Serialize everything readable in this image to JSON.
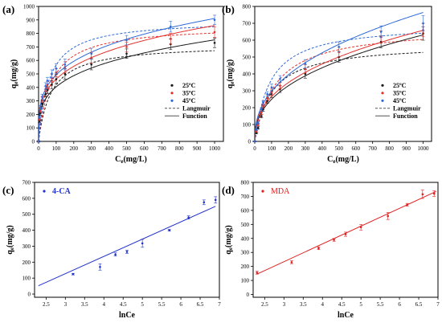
{
  "chart_data": [
    {
      "panel_label": "(a)",
      "type": "scatter",
      "xlabel": "Ce(mg/L)",
      "ylabel": "qe(mg/g)",
      "xlim": [
        0,
        1050
      ],
      "ylim": [
        0,
        1000
      ],
      "xticks": [
        0,
        100,
        200,
        300,
        400,
        500,
        600,
        700,
        800,
        900,
        1000
      ],
      "yticks": [
        0,
        100,
        200,
        300,
        400,
        500,
        600,
        700,
        800,
        900,
        1000
      ],
      "x": [
        0,
        5,
        10,
        20,
        40,
        50,
        75,
        100,
        150,
        300,
        500,
        750,
        1000
      ],
      "series": [
        {
          "name": "25ºC",
          "color": "#1a1a1a",
          "values": [
            0,
            150,
            210,
            280,
            350,
            380,
            420,
            460,
            500,
            570,
            650,
            720,
            730
          ],
          "errors": [
            5,
            10,
            15,
            20,
            20,
            25,
            30,
            35,
            40,
            40,
            35,
            40,
            35
          ]
        },
        {
          "name": "35ºC",
          "color": "#e5312d",
          "values": [
            0,
            165,
            230,
            310,
            390,
            420,
            470,
            510,
            550,
            620,
            700,
            760,
            810
          ],
          "errors": [
            5,
            10,
            15,
            20,
            20,
            25,
            30,
            30,
            40,
            40,
            35,
            40,
            40
          ]
        },
        {
          "name": "45ºC",
          "color": "#2d6ad6",
          "values": [
            0,
            180,
            250,
            330,
            410,
            450,
            500,
            540,
            570,
            650,
            750,
            850,
            900
          ],
          "errors": [
            5,
            10,
            15,
            20,
            25,
            25,
            30,
            35,
            40,
            40,
            35,
            40,
            35
          ]
        }
      ],
      "fits": [
        {
          "kind": "langmuir",
          "color": "#1a1a1a",
          "qmax": 720,
          "K": 0.014
        },
        {
          "kind": "langmuir",
          "color": "#e5312d",
          "qmax": 860,
          "K": 0.014
        },
        {
          "kind": "langmuir",
          "color": "#2d6ad6",
          "qmax": 900,
          "K": 0.017
        },
        {
          "kind": "function",
          "color": "#1a1a1a",
          "a": 116.5,
          "b": 0.27
        },
        {
          "kind": "function",
          "color": "#e5312d",
          "a": 133,
          "b": 0.27
        },
        {
          "kind": "function",
          "color": "#2d6ad6",
          "a": 145,
          "b": 0.266
        }
      ],
      "legend": {
        "position": "right",
        "entries": [
          {
            "label": "25ºC",
            "kind": "point",
            "color": "#1a1a1a"
          },
          {
            "label": "35ºC",
            "kind": "point",
            "color": "#e5312d"
          },
          {
            "label": "45ºC",
            "kind": "point",
            "color": "#2d6ad6"
          },
          {
            "label": "Langmuir",
            "kind": "dashed",
            "color": "#555555"
          },
          {
            "label": "Function",
            "kind": "solid",
            "color": "#555555"
          }
        ]
      }
    },
    {
      "panel_label": "(b)",
      "type": "scatter",
      "xlabel": "Ce(mg/L)",
      "ylabel": "qe(mg/g)",
      "xlim": [
        0,
        1050
      ],
      "ylim": [
        0,
        800
      ],
      "xticks": [
        0,
        100,
        200,
        300,
        400,
        500,
        600,
        700,
        800,
        900,
        1000
      ],
      "yticks": [
        0,
        100,
        200,
        300,
        400,
        500,
        600,
        700,
        800
      ],
      "x": [
        0,
        10,
        20,
        40,
        50,
        75,
        100,
        150,
        300,
        500,
        750,
        1000
      ],
      "series": [
        {
          "name": "25ºC",
          "color": "#1a1a1a",
          "values": [
            0,
            50,
            80,
            150,
            190,
            240,
            280,
            310,
            400,
            500,
            590,
            640
          ],
          "errors": [
            3,
            5,
            8,
            10,
            12,
            15,
            20,
            20,
            25,
            30,
            35,
            40
          ]
        },
        {
          "name": "35ºC",
          "color": "#e5312d",
          "values": [
            0,
            60,
            100,
            170,
            210,
            260,
            290,
            330,
            430,
            530,
            620,
            660
          ],
          "errors": [
            3,
            5,
            8,
            10,
            12,
            15,
            20,
            20,
            25,
            30,
            35,
            40
          ]
        },
        {
          "name": "45ºC",
          "color": "#2d6ad6",
          "values": [
            0,
            70,
            110,
            190,
            230,
            280,
            320,
            370,
            460,
            560,
            650,
            700
          ],
          "errors": [
            3,
            5,
            8,
            10,
            12,
            15,
            20,
            20,
            25,
            30,
            35,
            45
          ]
        }
      ],
      "fits": [
        {
          "kind": "langmuir",
          "color": "#1a1a1a",
          "qmax": 580,
          "K": 0.01
        },
        {
          "kind": "langmuir",
          "color": "#e5312d",
          "qmax": 680,
          "K": 0.008
        },
        {
          "kind": "langmuir",
          "color": "#2d6ad6",
          "qmax": 700,
          "K": 0.011
        },
        {
          "kind": "function",
          "color": "#1a1a1a",
          "a": 39,
          "b": 0.403
        },
        {
          "kind": "function",
          "color": "#e5312d",
          "a": 43,
          "b": 0.395
        },
        {
          "kind": "function",
          "color": "#2d6ad6",
          "a": 45,
          "b": 0.41
        }
      ],
      "legend": {
        "position": "right",
        "entries": [
          {
            "label": "25ºC",
            "kind": "point",
            "color": "#1a1a1a"
          },
          {
            "label": "35ºC",
            "kind": "point",
            "color": "#e5312d"
          },
          {
            "label": "45ºC",
            "kind": "point",
            "color": "#2d6ad6"
          },
          {
            "label": "Langmuir",
            "kind": "dashed",
            "color": "#555555"
          },
          {
            "label": "Function",
            "kind": "solid",
            "color": "#555555"
          }
        ]
      }
    },
    {
      "panel_label": "(c)",
      "type": "scatter",
      "xlabel": "lnCe",
      "ylabel": "qe(mg/g)",
      "xlim": [
        2.2,
        7.0
      ],
      "ylim": [
        -20,
        700
      ],
      "xticks": [
        2.5,
        3.0,
        3.5,
        4.0,
        4.5,
        5.0,
        5.5,
        6.0,
        6.5,
        7.0
      ],
      "yticks": [
        0,
        100,
        200,
        300,
        400,
        500,
        600,
        700
      ],
      "series": [
        {
          "name": "4-CA",
          "color": "#2233cc",
          "x": [
            3.2,
            3.9,
            4.3,
            4.6,
            5.0,
            5.7,
            6.2,
            6.6,
            6.9
          ],
          "values": [
            125,
            170,
            248,
            265,
            318,
            400,
            480,
            575,
            590
          ],
          "errors": [
            5,
            20,
            10,
            10,
            25,
            5,
            10,
            15,
            20
          ]
        }
      ],
      "fit_line": {
        "color": "#2233cc",
        "x": [
          2.3,
          6.9
        ],
        "y": [
          52,
          550
        ]
      },
      "legend": {
        "position": "top-left"
      }
    },
    {
      "panel_label": "(d)",
      "type": "scatter",
      "xlabel": "lnCe",
      "ylabel": "qe(mg/g)",
      "xlim": [
        2.2,
        7.0
      ],
      "ylim": [
        -20,
        800
      ],
      "xticks": [
        2.5,
        3.0,
        3.5,
        4.0,
        4.5,
        5.0,
        5.5,
        6.0,
        6.5,
        7.0
      ],
      "yticks": [
        0,
        100,
        200,
        300,
        400,
        500,
        600,
        700,
        800
      ],
      "series": [
        {
          "name": "MDA",
          "color": "#e02020",
          "x": [
            2.3,
            3.2,
            3.9,
            4.3,
            4.6,
            5.0,
            5.7,
            6.2,
            6.6,
            6.9
          ],
          "values": [
            155,
            230,
            330,
            390,
            430,
            480,
            560,
            640,
            715,
            720
          ],
          "errors": [
            10,
            10,
            10,
            10,
            15,
            20,
            25,
            10,
            30,
            20
          ]
        }
      ],
      "fit_line": {
        "color": "#e02020",
        "x": [
          2.3,
          6.95
        ],
        "y": [
          145,
          735
        ]
      },
      "legend": {
        "position": "top-left"
      }
    }
  ]
}
